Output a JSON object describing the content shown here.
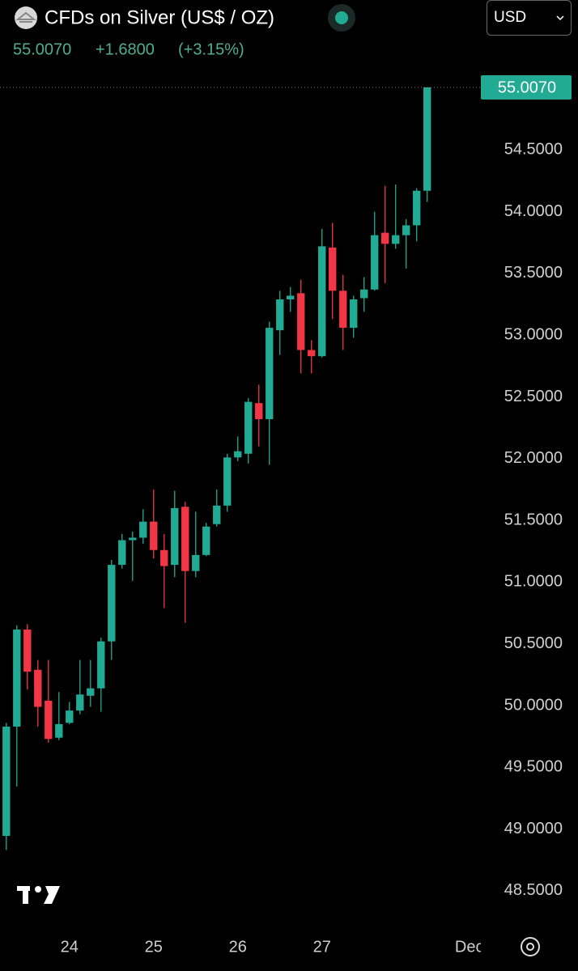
{
  "header": {
    "title": "CFDs on Silver (US$ / OZ)",
    "currency": "USD",
    "change": "+1.6800",
    "change_pct": "(+3.15%)"
  },
  "chart_data": {
    "type": "candlestick",
    "x": [
      0,
      1,
      2,
      3,
      4,
      5,
      6,
      7,
      8,
      9,
      10,
      11,
      12,
      13,
      14,
      15,
      16,
      17,
      18,
      19,
      20,
      21,
      22,
      23,
      24,
      25,
      26,
      27,
      28,
      29,
      30,
      31,
      32,
      33,
      34,
      35,
      36,
      37,
      38,
      39,
      40
    ],
    "open": [
      48.945,
      49.83,
      50.616,
      50.29,
      50.04,
      49.74,
      49.86,
      49.96,
      50.08,
      50.14,
      50.52,
      51.14,
      51.34,
      51.36,
      51.49,
      51.26,
      51.14,
      51.61,
      51.09,
      51.22,
      51.47,
      51.62,
      52.01,
      52.04,
      52.45,
      52.32,
      53.04,
      53.29,
      53.34,
      52.88,
      52.83,
      53.71,
      53.36,
      53.06,
      53.3,
      53.37,
      53.83,
      53.74,
      53.81,
      53.89,
      54.17
    ],
    "high": [
      49.86,
      50.65,
      50.66,
      50.37,
      50.37,
      50.11,
      50.03,
      50.37,
      50.37,
      50.55,
      51.18,
      51.39,
      51.41,
      51.59,
      51.75,
      51.39,
      51.74,
      51.65,
      51.57,
      51.48,
      51.75,
      52.04,
      52.18,
      52.49,
      52.6,
      53.11,
      53.36,
      53.39,
      53.45,
      52.96,
      53.86,
      53.91,
      53.49,
      53.32,
      53.47,
      54.0,
      54.21,
      54.22,
      53.94,
      54.19,
      55.007
    ],
    "low": [
      48.83,
      49.345,
      50.13,
      49.83,
      49.7,
      49.72,
      49.85,
      49.93,
      49.99,
      49.95,
      50.37,
      51.11,
      51.01,
      51.31,
      51.19,
      50.79,
      51.04,
      50.67,
      51.04,
      51.21,
      51.45,
      51.57,
      51.98,
      51.96,
      52.1,
      51.95,
      52.84,
      53.19,
      52.69,
      52.69,
      52.82,
      53.13,
      52.88,
      52.98,
      53.19,
      53.36,
      53.42,
      53.7,
      53.54,
      53.76,
      54.08
    ],
    "close": [
      49.83,
      50.616,
      50.275,
      49.99,
      49.73,
      49.85,
      49.96,
      50.09,
      50.14,
      50.52,
      51.14,
      51.34,
      51.36,
      51.49,
      51.26,
      51.13,
      51.6,
      51.09,
      51.22,
      51.45,
      51.62,
      52.01,
      52.06,
      52.46,
      52.32,
      53.06,
      53.29,
      53.32,
      52.88,
      52.83,
      53.72,
      53.36,
      53.06,
      53.29,
      53.37,
      53.81,
      53.74,
      53.81,
      53.89,
      54.17,
      55.007
    ],
    "up_color": "#22ab94",
    "down_color": "#f23645",
    "last_price": {
      "value": 55.007,
      "label": "55.0070"
    },
    "xlim": [
      -0.6,
      45.1
    ],
    "xticks": [
      {
        "value": 6,
        "label": "24"
      },
      {
        "value": 14,
        "label": "25"
      },
      {
        "value": 22,
        "label": "26"
      },
      {
        "value": 30,
        "label": "27"
      },
      {
        "value": 44,
        "label": "Dec"
      }
    ],
    "ylim": [
      48.211,
      55.125
    ],
    "yticks": [
      {
        "value": 48.5,
        "label": "48.5000"
      },
      {
        "value": 49,
        "label": "49.0000"
      },
      {
        "value": 49.5,
        "label": "49.5000"
      },
      {
        "value": 50,
        "label": "50.0000"
      },
      {
        "value": 50.5,
        "label": "50.5000"
      },
      {
        "value": 51,
        "label": "51.0000"
      },
      {
        "value": 51.5,
        "label": "51.5000"
      },
      {
        "value": 52,
        "label": "52.0000"
      },
      {
        "value": 52.5,
        "label": "52.5000"
      },
      {
        "value": 53,
        "label": "53.0000"
      },
      {
        "value": 53.5,
        "label": "53.5000"
      },
      {
        "value": 54,
        "label": "54.0000"
      },
      {
        "value": 54.5,
        "label": "54.5000"
      }
    ]
  }
}
